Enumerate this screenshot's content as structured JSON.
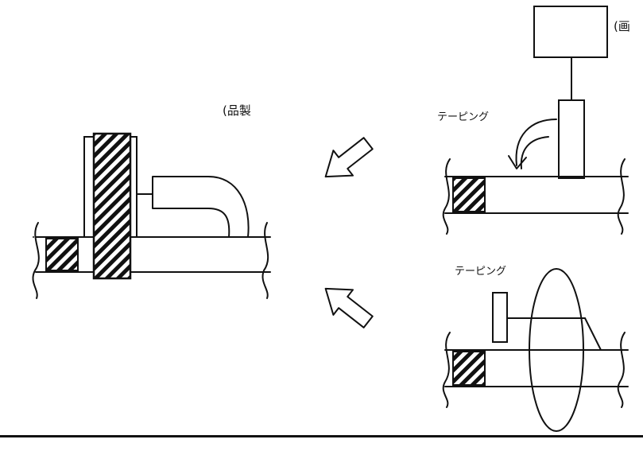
{
  "labels": {
    "product": "(品製",
    "process_top": "(画",
    "taping_top": "テーピング",
    "taping_bottom": "テーピング"
  },
  "colors": {
    "ink": "#111111",
    "background": "#ffffff"
  },
  "icons": [
    "hatch-pattern",
    "curved-arrow",
    "hollow-arrow"
  ]
}
